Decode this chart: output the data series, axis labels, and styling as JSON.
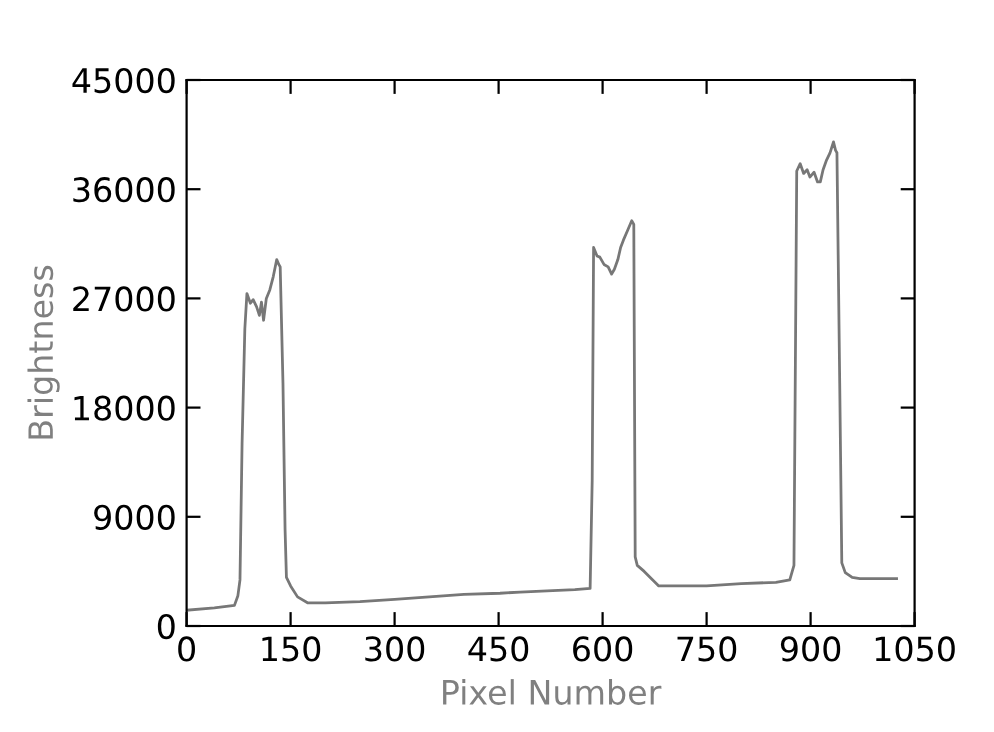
{
  "chart_data": {
    "type": "line",
    "xlabel": "Pixel Number",
    "ylabel": "Brightness",
    "xlim": [
      0,
      1050
    ],
    "ylim": [
      0,
      45000
    ],
    "xticks": [
      0,
      150,
      300,
      450,
      600,
      750,
      900,
      1050
    ],
    "yticks": [
      0,
      9000,
      18000,
      27000,
      36000,
      45000
    ],
    "grid": false,
    "legend": false,
    "marker": "none",
    "line_style": "solid",
    "series": [
      {
        "color": "#777777",
        "x": [
          0,
          40,
          69,
          74,
          77,
          80,
          84,
          87,
          92,
          96,
          101,
          105,
          108,
          111,
          115,
          120,
          125,
          130,
          133,
          135,
          139,
          142,
          144,
          150,
          160,
          175,
          200,
          250,
          300,
          350,
          400,
          452,
          481,
          520,
          560,
          582,
          585,
          587,
          592,
          596,
          602,
          608,
          613,
          617,
          622,
          626,
          630,
          636,
          642,
          645,
          647,
          650,
          660,
          681,
          700,
          750,
          800,
          850,
          870,
          876,
          880,
          885,
          890,
          895,
          899,
          905,
          910,
          914,
          918,
          923,
          928,
          933,
          936,
          938,
          942,
          945,
          950,
          960,
          971,
          1000,
          1024
        ],
        "values": [
          1300,
          1500,
          1700,
          2500,
          3800,
          15000,
          24500,
          27400,
          26600,
          26900,
          26300,
          25600,
          26700,
          25200,
          27000,
          27700,
          28800,
          30200,
          29800,
          29600,
          20000,
          8000,
          4000,
          3300,
          2400,
          1900,
          1900,
          2000,
          2200,
          2400,
          2600,
          2700,
          2800,
          2900,
          3000,
          3100,
          12000,
          31200,
          30500,
          30400,
          29800,
          29600,
          29000,
          29400,
          30200,
          31200,
          31800,
          32600,
          33400,
          33100,
          5700,
          5000,
          4500,
          3300,
          3300,
          3300,
          3500,
          3600,
          3800,
          5000,
          37500,
          38100,
          37300,
          37600,
          37000,
          37400,
          36600,
          36600,
          37600,
          38400,
          39000,
          39900,
          39200,
          39000,
          20000,
          5200,
          4400,
          4000,
          3900,
          3900,
          3900
        ]
      }
    ]
  }
}
